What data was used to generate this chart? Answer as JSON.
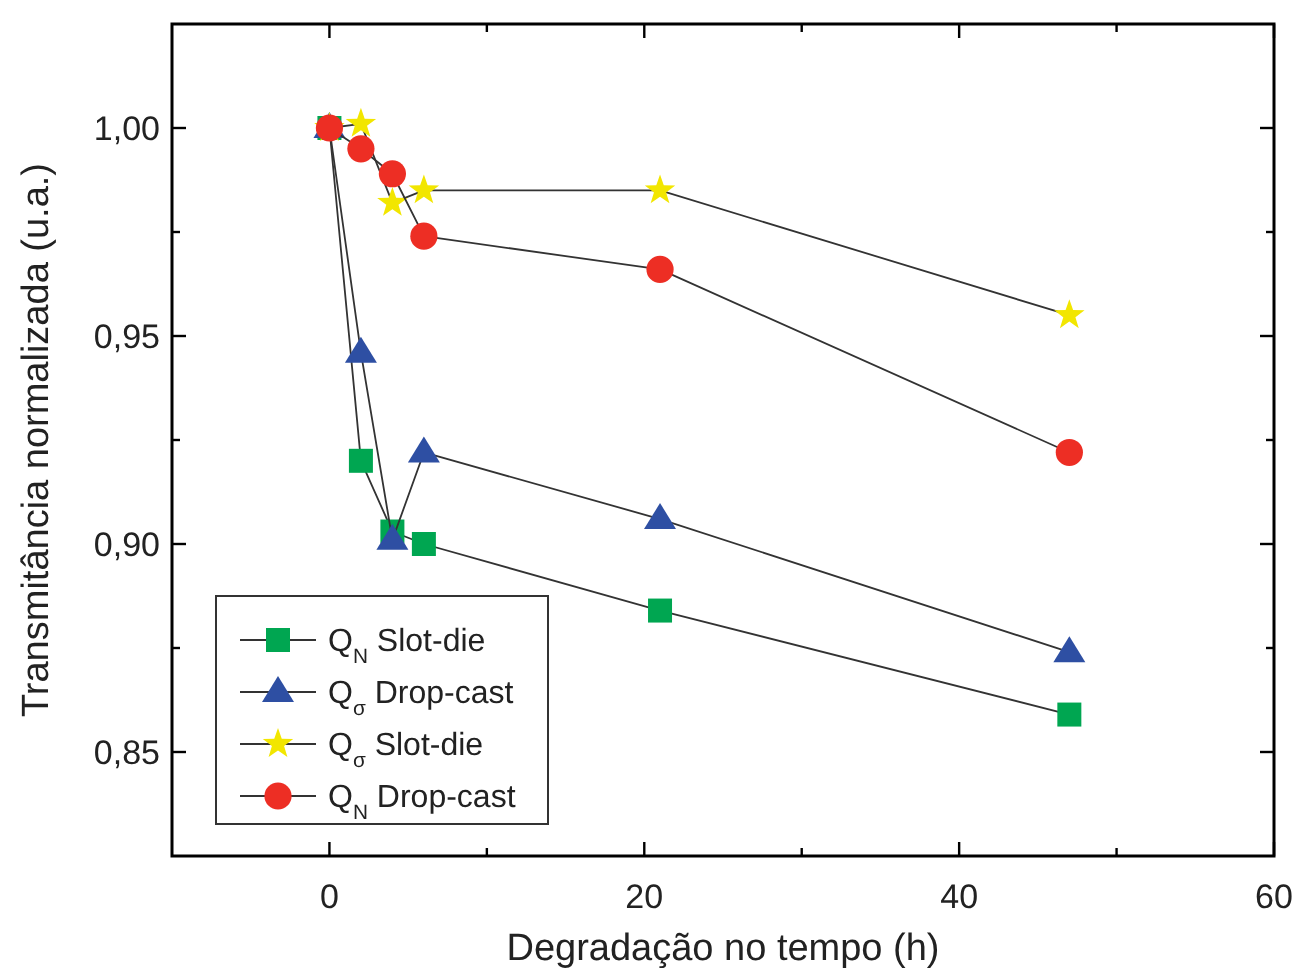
{
  "chart_data": {
    "type": "line",
    "xlabel": "Degradação no tempo (h)",
    "ylabel": "Transmitância normalizada (u.a.)",
    "x": [
      0,
      2,
      4,
      6,
      21,
      47
    ],
    "series": [
      {
        "name": "Q$_{N}$ Slot-die",
        "color": "#00a651",
        "marker": "square",
        "values": [
          1.0,
          0.92,
          0.903,
          0.9,
          0.884,
          0.859
        ]
      },
      {
        "name": "Q$_{σ}$ Drop-cast",
        "color": "#2e4fa3",
        "marker": "triangle",
        "values": [
          1.0,
          0.946,
          0.901,
          0.922,
          0.906,
          0.874
        ]
      },
      {
        "name": "Q$_{σ}$ Slot-die",
        "color": "#f2e600",
        "marker": "star",
        "values": [
          1.0,
          1.001,
          0.982,
          0.985,
          0.985,
          0.955
        ]
      },
      {
        "name": "Q$_{N}$ Drop-cast",
        "color": "#ed2e24",
        "marker": "circle",
        "values": [
          1.0,
          0.995,
          0.989,
          0.974,
          0.966,
          0.922
        ]
      }
    ],
    "xlim": [
      -10,
      60
    ],
    "xticks": [
      0,
      {
        "value": 10,
        "label": null
      },
      20,
      {
        "value": 30,
        "label": null
      },
      40,
      {
        "value": 50,
        "label": null
      },
      60
    ],
    "ylim": [
      0.825,
      1.025
    ],
    "yticks": [
      {
        "value": 0.85,
        "label": "0,85"
      },
      {
        "value": 0.875,
        "label": null
      },
      {
        "value": 0.9,
        "label": "0,90"
      },
      {
        "value": 0.925,
        "label": null
      },
      {
        "value": 0.95,
        "label": "0,95"
      },
      {
        "value": 0.975,
        "label": null
      },
      {
        "value": 1.0,
        "label": "1,00"
      }
    ],
    "grid": false,
    "legend": "bottom left",
    "line_style": "solid"
  }
}
